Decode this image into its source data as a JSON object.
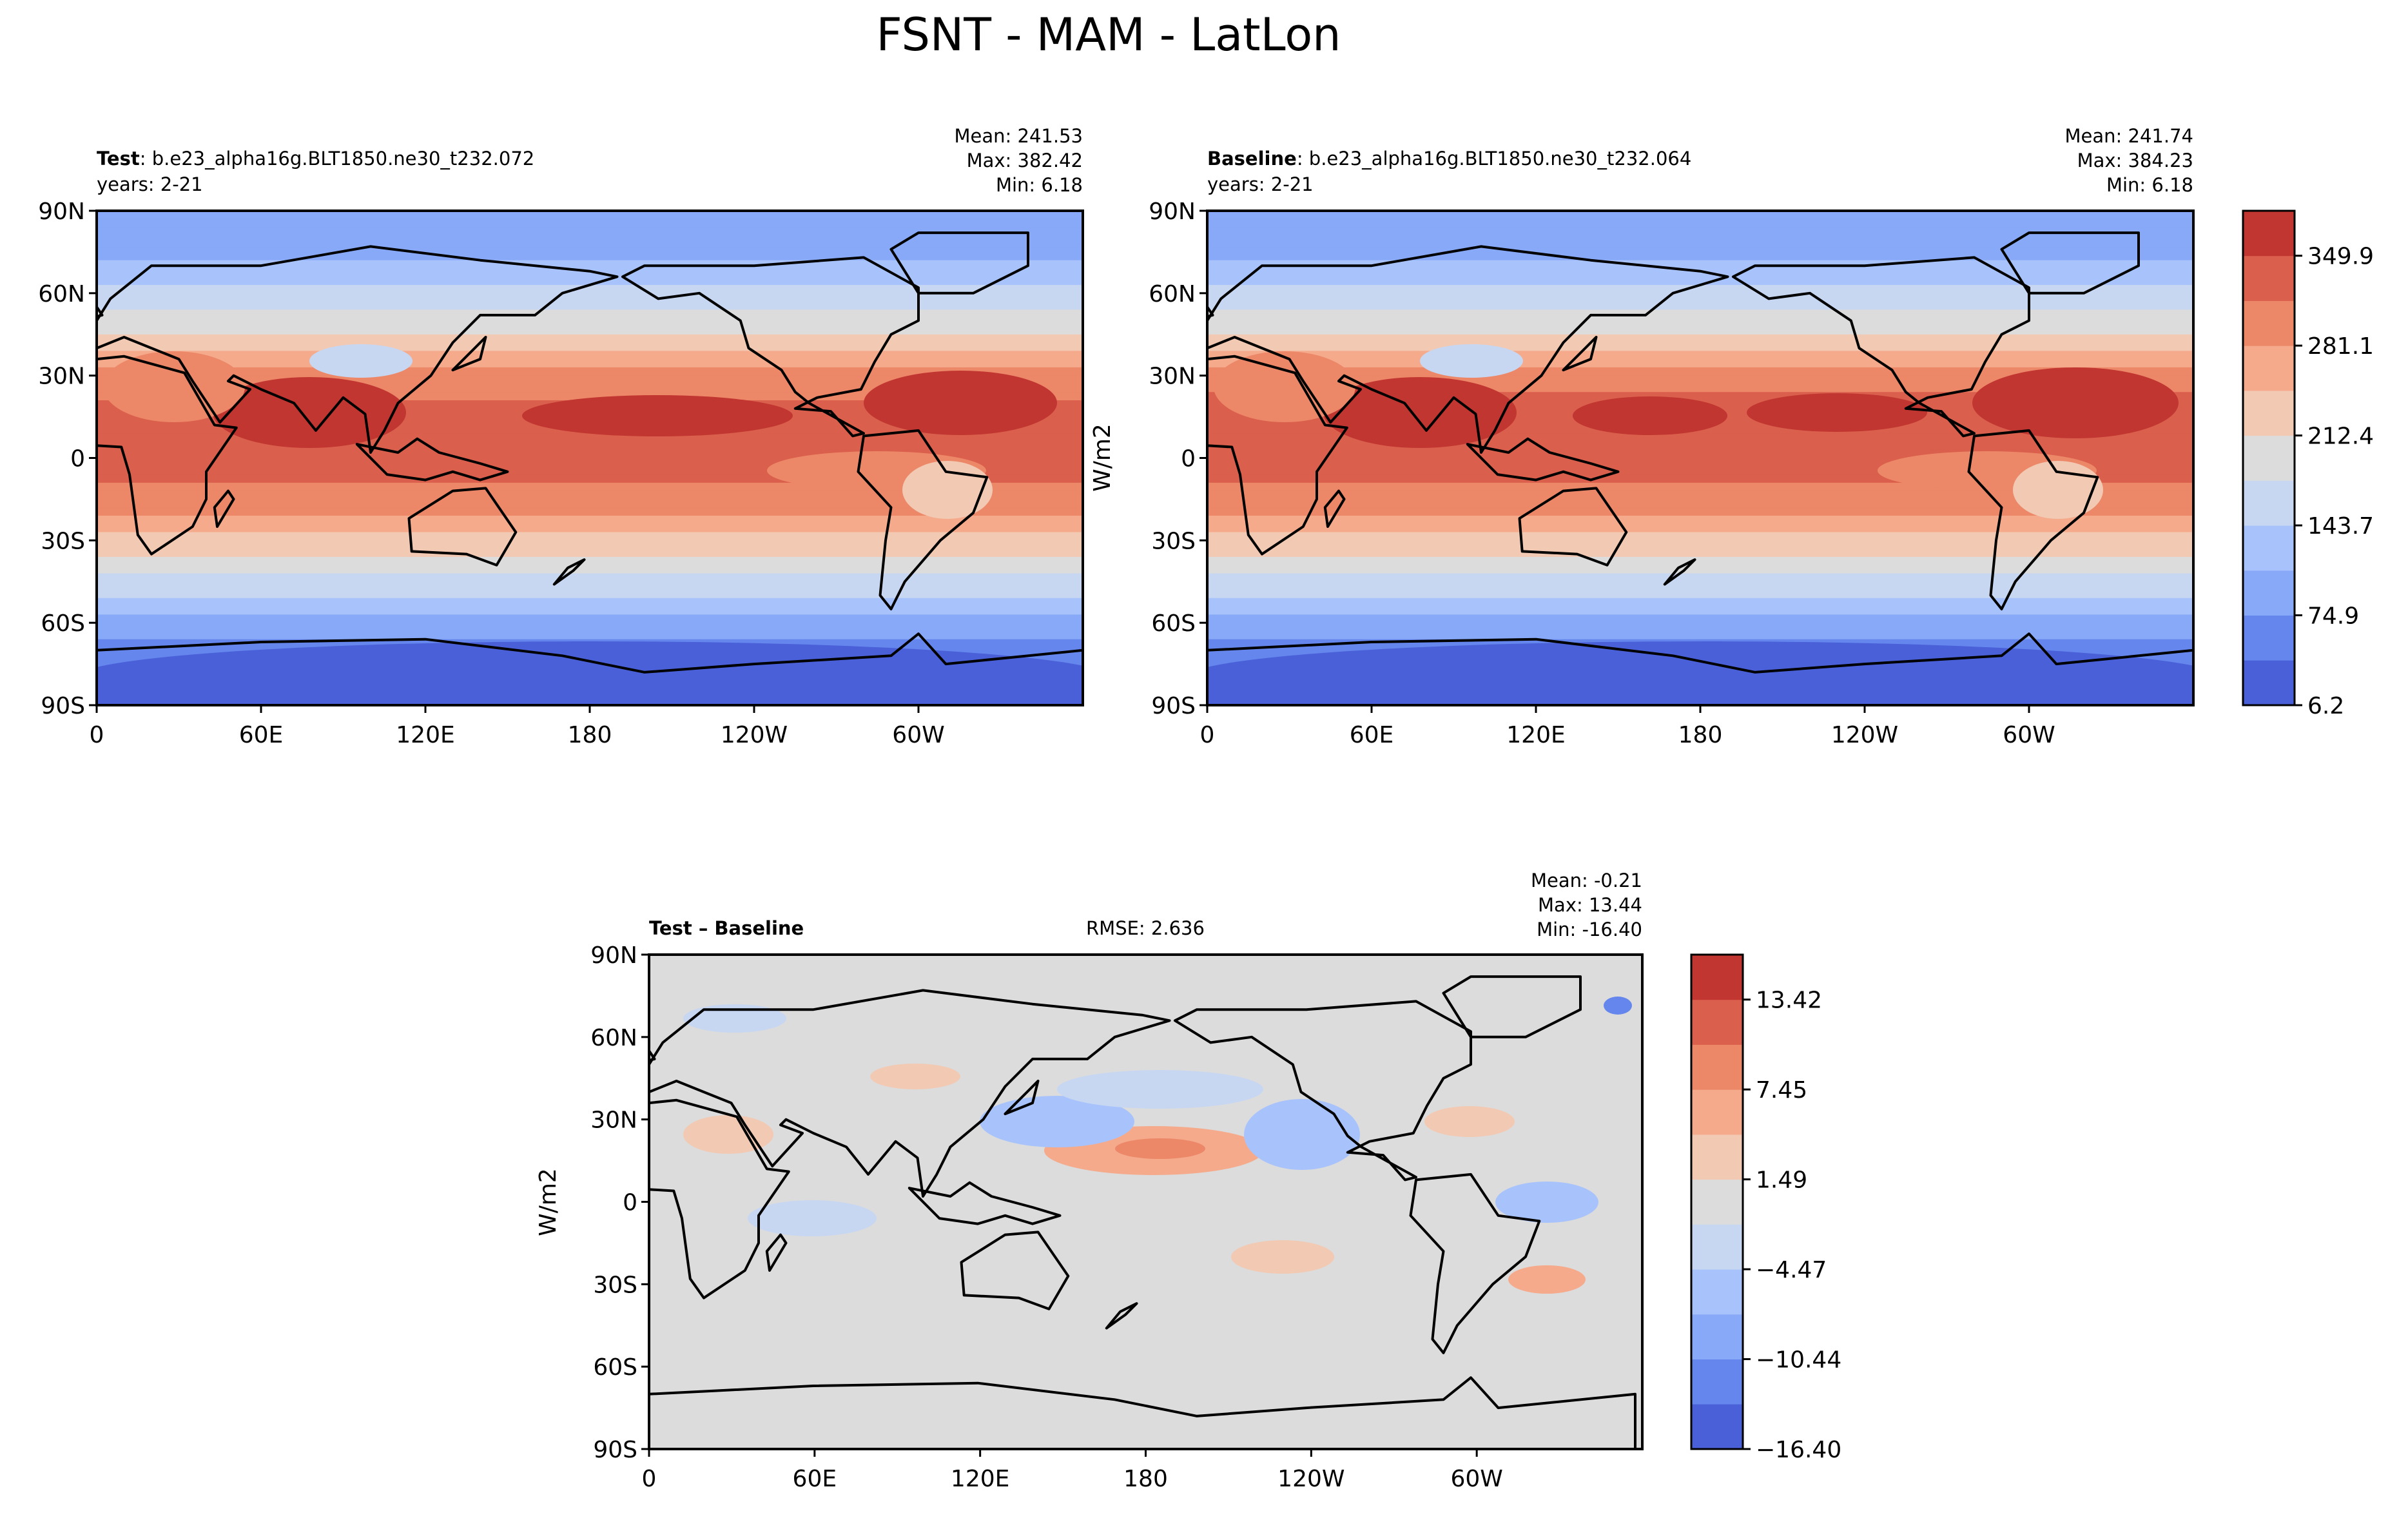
{
  "title": "FSNT - MAM - LatLon",
  "xticks": [
    "0",
    "60E",
    "120E",
    "180",
    "120W",
    "60W"
  ],
  "yticks": [
    "90N",
    "60N",
    "30N",
    "0",
    "30S",
    "60S",
    "90S"
  ],
  "test": {
    "label_bold": "Test",
    "case": ": b.e23_alpha16g.BLT1850.ne30_t232.072",
    "years": "years: 2-21",
    "mean": "Mean: 241.53",
    "max": "Max: 382.42",
    "min": "Min:  6.18"
  },
  "baseline": {
    "label_bold": "Baseline",
    "case": ": b.e23_alpha16g.BLT1850.ne30_t232.064",
    "years": "years: 2-21",
    "mean": "Mean: 241.74",
    "max": "Max: 384.23",
    "min": "Min:  6.18",
    "colorbar_label": "W/m2"
  },
  "diff": {
    "label_bold": "Test – Baseline",
    "rmse": "RMSE: 2.636",
    "mean": "Mean: -0.21",
    "max": "Max: 13.44",
    "min": "Min: -16.40",
    "colorbar_label": "W/m2"
  },
  "colors": {
    "scale": [
      "#4a60d8",
      "#6586ec",
      "#88a9f7",
      "#a8c3fb",
      "#c7d7f2",
      "#dcdcdc",
      "#f2c9b3",
      "#f5aa8c",
      "#ec8768",
      "#da5f4c",
      "#c13631"
    ]
  },
  "chart_data": [
    {
      "type": "heatmap",
      "title": "Test : b.e23_alpha16g.BLT1850.ne30_t232.072",
      "subtitle": "years: 2-21",
      "xlabel": "",
      "ylabel": "",
      "x": [
        "0",
        "60E",
        "120E",
        "180",
        "120W",
        "60W"
      ],
      "y": [
        "90N",
        "60N",
        "30N",
        "0",
        "30S",
        "60S",
        "90S"
      ],
      "zonal_mean_profile": {
        "lat": [
          -90,
          -75,
          -60,
          -45,
          -30,
          -15,
          0,
          15,
          30,
          45,
          60,
          75,
          90
        ],
        "values": [
          18,
          45,
          95,
          165,
          240,
          305,
          330,
          340,
          290,
          215,
          160,
          100,
          80
        ]
      },
      "stats": {
        "mean": 241.53,
        "max": 382.42,
        "min": 6.18
      },
      "colorbar": {
        "ticks": [
          "6.2",
          "74.9",
          "143.7",
          "212.4",
          "281.1",
          "349.9"
        ],
        "range": [
          6.2,
          384.23
        ]
      }
    },
    {
      "type": "heatmap",
      "title": "Baseline : b.e23_alpha16g.BLT1850.ne30_t232.064",
      "subtitle": "years: 2-21",
      "xlabel": "",
      "ylabel": "",
      "x": [
        "0",
        "60E",
        "120E",
        "180",
        "120W",
        "60W"
      ],
      "y": [
        "90N",
        "60N",
        "30N",
        "0",
        "30S",
        "60S",
        "90S"
      ],
      "zonal_mean_profile": {
        "lat": [
          -90,
          -75,
          -60,
          -45,
          -30,
          -15,
          0,
          15,
          30,
          45,
          60,
          75,
          90
        ],
        "values": [
          18,
          45,
          95,
          165,
          240,
          305,
          330,
          341,
          291,
          215,
          160,
          100,
          80
        ]
      },
      "stats": {
        "mean": 241.74,
        "max": 384.23,
        "min": 6.18
      },
      "colorbar": {
        "ticks": [
          "6.2",
          "74.9",
          "143.7",
          "212.4",
          "281.1",
          "349.9"
        ],
        "range": [
          6.2,
          384.23
        ],
        "label": "W/m2"
      }
    },
    {
      "type": "heatmap",
      "title": "Test – Baseline",
      "subtitle": "RMSE: 2.636",
      "xlabel": "",
      "ylabel": "",
      "x": [
        "0",
        "60E",
        "120E",
        "180",
        "120W",
        "60W"
      ],
      "y": [
        "90N",
        "60N",
        "30N",
        "0",
        "30S",
        "60S",
        "90S"
      ],
      "stats": {
        "mean": -0.21,
        "max": 13.44,
        "min": -16.4,
        "rmse": 2.636
      },
      "colorbar": {
        "ticks": [
          "−16.40",
          "−10.44",
          "−4.47",
          "1.49",
          "7.45",
          "13.42"
        ],
        "range": [
          -16.4,
          16.4
        ],
        "label": "W/m2"
      }
    }
  ]
}
